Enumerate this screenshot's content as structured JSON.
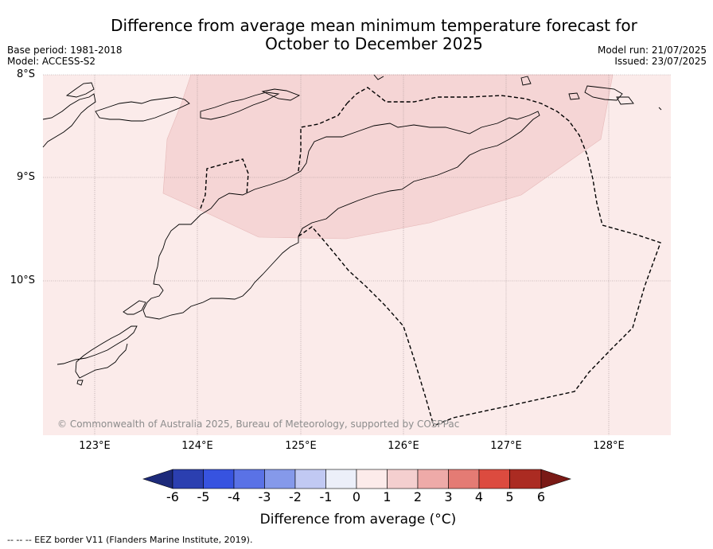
{
  "title_line1": "Difference from average mean minimum temperature forecast for",
  "title_line2": "October to December 2025",
  "meta_left": {
    "base_period": "Base period: 1981-2018",
    "model": "Model: ACCESS-S2"
  },
  "meta_right": {
    "model_run": "Model run: 21/07/2025",
    "issued": "Issued: 23/07/2025"
  },
  "lat_labels": [
    "8°S",
    "9°S",
    "10°S"
  ],
  "lon_labels": [
    "123°E",
    "124°E",
    "125°E",
    "126°E",
    "127°E",
    "128°E"
  ],
  "copyright": "© Commonwealth of Australia 2025, Bureau of Meteorology, supported by COSPPac",
  "colorbar": {
    "title": "Difference from average (°C)",
    "labels": [
      "-6",
      "-5",
      "-4",
      "-3",
      "-2",
      "-1",
      "0",
      "1",
      "2",
      "3",
      "4",
      "5",
      "6"
    ],
    "colors": [
      "#1d2a7a",
      "#2b3fb0",
      "#3753e0",
      "#5a72e6",
      "#8599ea",
      "#c1c9f3",
      "#eceff9",
      "#fcebea",
      "#f4cfcf",
      "#eeaaa8",
      "#e47b74",
      "#dc4b3f",
      "#ab2b22",
      "#7a1a16"
    ]
  },
  "map_fill": {
    "background_anomaly_color": "#fbebea",
    "warmer_zone_color": "#f5d5d5"
  },
  "footnote": "-- -- -- EEZ border V11 (Flanders Marine Institute, 2019)."
}
